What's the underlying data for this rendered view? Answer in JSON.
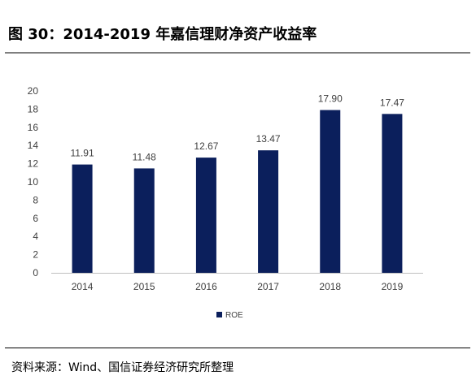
{
  "title": "图 30：2014-2019 年嘉信理财净资产收益率",
  "source": "资料来源：Wind、国信证券经济研究所整理",
  "colors": {
    "bar": "#0b1f5c",
    "text": "#404040",
    "axis": "#bfbfbf",
    "rule": "#7f7f7f"
  },
  "chart_data": {
    "type": "bar",
    "categories": [
      "2014",
      "2015",
      "2016",
      "2017",
      "2018",
      "2019"
    ],
    "series": [
      {
        "name": "ROE",
        "values": [
          11.91,
          11.48,
          12.67,
          13.47,
          17.9,
          17.47
        ],
        "labels": [
          "11.91",
          "11.48",
          "12.67",
          "13.47",
          "17.90",
          "17.47"
        ]
      }
    ],
    "yticks": [
      "0",
      "2",
      "4",
      "6",
      "8",
      "10",
      "12",
      "14",
      "16",
      "18",
      "20"
    ],
    "ylim": [
      0,
      20
    ],
    "grid": false,
    "legend": "bottom-center"
  }
}
